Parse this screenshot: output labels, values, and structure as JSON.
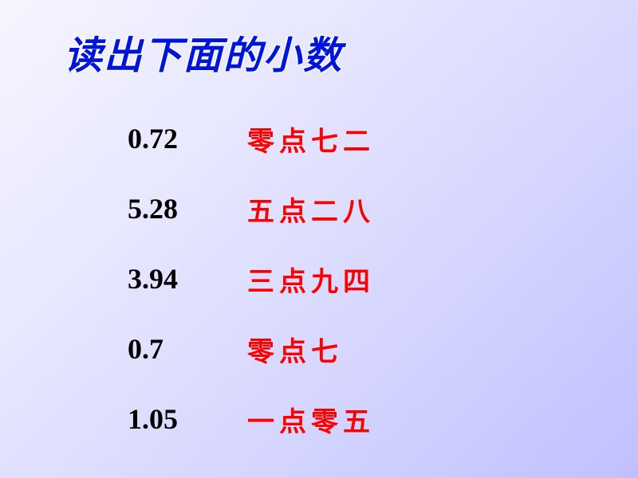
{
  "title": "读出下面的小数",
  "rows": [
    {
      "number": "0.72",
      "reading": "零点七二"
    },
    {
      "number": "5.28",
      "reading": "五点二八"
    },
    {
      "number": "3.94",
      "reading": "三点九四"
    },
    {
      "number": "0.7",
      "reading": "零点七"
    },
    {
      "number": "1.05",
      "reading": "一点零五"
    }
  ],
  "colors": {
    "title_color": "#0015d8",
    "number_color": "#000000",
    "reading_color": "#ff0000",
    "bg_start": "#f5f5ff",
    "bg_end": "#c0c0ff"
  },
  "typography": {
    "title_fontsize": 48,
    "number_fontsize": 36,
    "reading_fontsize": 34
  }
}
